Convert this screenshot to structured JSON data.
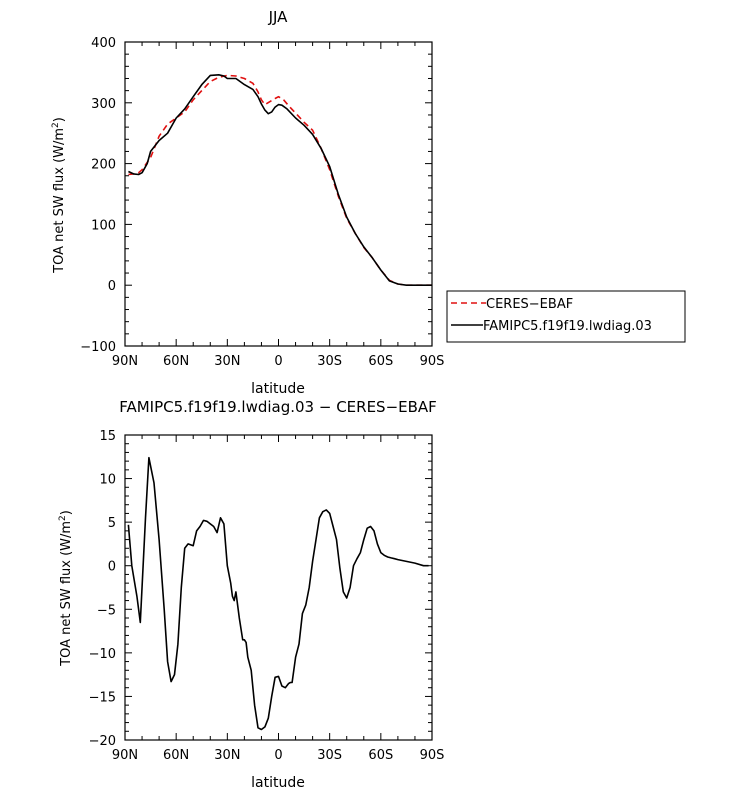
{
  "chart_data": [
    {
      "type": "line",
      "title": "JJA",
      "xlabel": "latitude",
      "ylabel": "TOA net SW flux (W/m²)",
      "ylabel_main": "TOA net SW flux (W/m",
      "ylabel_unit_end": ")",
      "ylabel_sup": "2",
      "xlim": [
        90,
        -90
      ],
      "ylim": [
        -100,
        400
      ],
      "x_ticks": [
        90,
        60,
        30,
        0,
        -30,
        -60,
        -90
      ],
      "x_tick_labels": [
        "90N",
        "60N",
        "30N",
        "0",
        "30S",
        "60S",
        "90S"
      ],
      "y_ticks": [
        -100,
        0,
        100,
        200,
        300,
        400
      ],
      "y_tick_labels": [
        "−100",
        "0",
        "100",
        "200",
        "300",
        "400"
      ],
      "legend_position": "right",
      "series": [
        {
          "name": "CERES−EBAF",
          "color": "#e01010",
          "dash": "dashed",
          "x": [
            88,
            85,
            82,
            80,
            75,
            70,
            65,
            60,
            55,
            50,
            45,
            40,
            35,
            30,
            25,
            20,
            15,
            12,
            10,
            8,
            5,
            2,
            0,
            -3,
            -6,
            -10,
            -15,
            -20,
            -25,
            -30,
            -35,
            -40,
            -45,
            -50,
            -55,
            -60,
            -65,
            -70,
            -75,
            -80,
            -85,
            -90
          ],
          "y": [
            182,
            183,
            185,
            190,
            210,
            245,
            265,
            275,
            285,
            305,
            320,
            335,
            342,
            345,
            344,
            340,
            332,
            318,
            305,
            297,
            302,
            307,
            310,
            305,
            295,
            283,
            268,
            255,
            225,
            190,
            147,
            110,
            85,
            62,
            45,
            25,
            8,
            2,
            0,
            0,
            0,
            0
          ]
        },
        {
          "name": "FAMIPC5.f19f19.lwdiag.03",
          "color": "#000000",
          "dash": "solid",
          "x": [
            88,
            85,
            82,
            80,
            77,
            75,
            70,
            65,
            60,
            55,
            50,
            45,
            40,
            35,
            32,
            30,
            25,
            20,
            15,
            12,
            10,
            8,
            6,
            4,
            2,
            0,
            -2,
            -5,
            -10,
            -15,
            -20,
            -25,
            -30,
            -35,
            -40,
            -45,
            -50,
            -55,
            -60,
            -65,
            -70,
            -75,
            -80,
            -85,
            -90
          ],
          "y": [
            187,
            183,
            182,
            185,
            200,
            220,
            238,
            250,
            275,
            290,
            310,
            330,
            345,
            346,
            344,
            340,
            340,
            330,
            322,
            310,
            298,
            288,
            282,
            285,
            293,
            297,
            296,
            290,
            275,
            263,
            248,
            225,
            195,
            150,
            112,
            85,
            63,
            45,
            25,
            7,
            2,
            0,
            0,
            0,
            0
          ]
        }
      ]
    },
    {
      "type": "line",
      "title": "FAMIPC5.f19f19.lwdiag.03 − CERES−EBAF",
      "xlabel": "latitude",
      "ylabel": "TOA net SW flux (W/m²)",
      "ylabel_main": "TOA net SW flux (W/m",
      "ylabel_unit_end": ")",
      "ylabel_sup": "2",
      "xlim": [
        90,
        -90
      ],
      "ylim": [
        -20,
        15
      ],
      "x_ticks": [
        90,
        60,
        30,
        0,
        -30,
        -60,
        -90
      ],
      "x_tick_labels": [
        "90N",
        "60N",
        "30N",
        "0",
        "30S",
        "60S",
        "90S"
      ],
      "y_ticks": [
        -20,
        -15,
        -10,
        -5,
        0,
        5,
        10,
        15
      ],
      "y_tick_labels": [
        "−20",
        "−15",
        "−10",
        "−5",
        "0",
        "5",
        "10",
        "15"
      ],
      "series": [
        {
          "name": "",
          "color": "#000000",
          "dash": "solid",
          "x": [
            88,
            86,
            83,
            81,
            78,
            76,
            73,
            70,
            67,
            65,
            63,
            61,
            59,
            57,
            55,
            53,
            50,
            48,
            46,
            44,
            42,
            40,
            38,
            36,
            34,
            32,
            30,
            28,
            27,
            26,
            25,
            23,
            21,
            20,
            19,
            18,
            16,
            14,
            12,
            10,
            8,
            6,
            4,
            2,
            0,
            -2,
            -4,
            -6,
            -7,
            -8,
            -10,
            -12,
            -14,
            -16,
            -18,
            -20,
            -22,
            -24,
            -26,
            -28,
            -30,
            -32,
            -34,
            -36,
            -38,
            -40,
            -42,
            -44,
            -46,
            -48,
            -50,
            -52,
            -54,
            -56,
            -58,
            -60,
            -62,
            -64,
            -66,
            -68,
            -70,
            -75,
            -80,
            -85,
            -88
          ],
          "y": [
            4.7,
            0,
            -3.5,
            -6.5,
            5.5,
            12.4,
            9.5,
            3,
            -5,
            -11,
            -13.3,
            -12.5,
            -9,
            -2.5,
            2,
            2.5,
            2.3,
            4,
            4.5,
            5.2,
            5.1,
            4.8,
            4.5,
            3.8,
            5.5,
            4.8,
            0,
            -2,
            -3.5,
            -4,
            -3,
            -6,
            -8.5,
            -8.5,
            -8.8,
            -10.5,
            -12,
            -16,
            -18.6,
            -18.8,
            -18.5,
            -17.5,
            -15,
            -12.8,
            -12.7,
            -13.8,
            -14,
            -13.5,
            -13.4,
            -13.4,
            -10.5,
            -9,
            -5.5,
            -4.5,
            -2.5,
            0.5,
            3,
            5.5,
            6.2,
            6.4,
            6,
            4.5,
            3,
            -0.3,
            -3,
            -3.7,
            -2.5,
            0,
            0.8,
            1.5,
            3,
            4.3,
            4.5,
            4,
            2.5,
            1.5,
            1.2,
            1,
            0.9,
            0.8,
            0.7,
            0.5,
            0.3,
            0,
            0
          ]
        }
      ]
    }
  ]
}
